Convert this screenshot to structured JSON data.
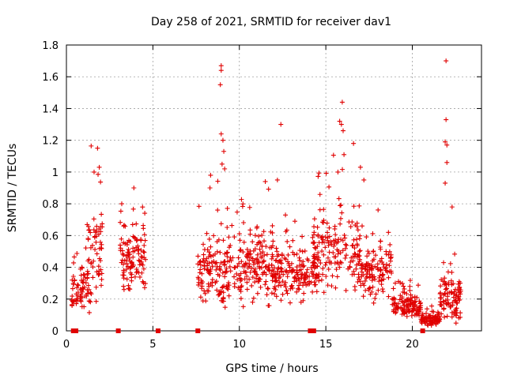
{
  "chart_data": {
    "type": "scatter",
    "title": "Day 258 of 2021, SRMTID for receiver dav1",
    "xlabel": "GPS time / hours",
    "ylabel": "SRMTID / TECUs",
    "xlim": [
      0,
      24
    ],
    "ylim": [
      0,
      1.8
    ],
    "xticks": [
      0,
      5,
      10,
      15,
      20
    ],
    "yticks": [
      0,
      0.2,
      0.4,
      0.6,
      0.8,
      1.0,
      1.2,
      1.4,
      1.6,
      1.8
    ],
    "ytick_labels": [
      "0",
      "0.2",
      "0.4",
      "0.6",
      "0.8",
      "1",
      "1.2",
      "1.4",
      "1.6",
      "1.8"
    ],
    "grid": true,
    "marker": "plus",
    "series_color": "#e00000",
    "clusters": [
      {
        "x0": 0.3,
        "x1": 1.4,
        "base": 0.25,
        "spread": 0.12,
        "n": 70
      },
      {
        "x0": 1.2,
        "x1": 2.1,
        "base": 0.5,
        "spread": 0.25,
        "n": 60
      },
      {
        "x0": 3.1,
        "x1": 4.6,
        "base": 0.45,
        "spread": 0.18,
        "n": 110
      },
      {
        "x0": 7.6,
        "x1": 9.8,
        "base": 0.38,
        "spread": 0.18,
        "n": 150
      },
      {
        "x0": 9.8,
        "x1": 12.0,
        "base": 0.4,
        "spread": 0.2,
        "n": 160
      },
      {
        "x0": 12.0,
        "x1": 14.6,
        "base": 0.36,
        "spread": 0.14,
        "n": 170
      },
      {
        "x0": 14.2,
        "x1": 17.0,
        "base": 0.5,
        "spread": 0.22,
        "n": 170
      },
      {
        "x0": 17.0,
        "x1": 18.8,
        "base": 0.38,
        "spread": 0.16,
        "n": 120
      },
      {
        "x0": 18.8,
        "x1": 20.5,
        "base": 0.15,
        "spread": 0.07,
        "n": 120
      },
      {
        "x0": 20.5,
        "x1": 21.6,
        "base": 0.07,
        "spread": 0.03,
        "n": 90
      },
      {
        "x0": 21.6,
        "x1": 22.8,
        "base": 0.2,
        "spread": 0.12,
        "n": 100
      }
    ],
    "spikes": [
      {
        "x": 1.8,
        "y": 1.15
      },
      {
        "x": 1.9,
        "y": 1.03
      },
      {
        "x": 1.6,
        "y": 1.0
      },
      {
        "x": 3.2,
        "y": 0.8
      },
      {
        "x": 3.9,
        "y": 0.9
      },
      {
        "x": 8.95,
        "y": 1.67
      },
      {
        "x": 8.95,
        "y": 1.64
      },
      {
        "x": 8.9,
        "y": 1.55
      },
      {
        "x": 8.95,
        "y": 1.24
      },
      {
        "x": 9.05,
        "y": 1.2
      },
      {
        "x": 9.1,
        "y": 1.13
      },
      {
        "x": 9.0,
        "y": 1.05
      },
      {
        "x": 9.15,
        "y": 1.02
      },
      {
        "x": 8.3,
        "y": 0.9
      },
      {
        "x": 11.5,
        "y": 0.94
      },
      {
        "x": 12.4,
        "y": 1.3
      },
      {
        "x": 12.2,
        "y": 0.95
      },
      {
        "x": 15.95,
        "y": 1.44
      },
      {
        "x": 15.8,
        "y": 1.32
      },
      {
        "x": 15.9,
        "y": 1.3
      },
      {
        "x": 16.0,
        "y": 1.26
      },
      {
        "x": 16.05,
        "y": 1.11
      },
      {
        "x": 16.6,
        "y": 1.18
      },
      {
        "x": 15.7,
        "y": 1.0
      },
      {
        "x": 17.0,
        "y": 1.03
      },
      {
        "x": 17.2,
        "y": 0.95
      },
      {
        "x": 21.95,
        "y": 1.7
      },
      {
        "x": 21.95,
        "y": 1.33
      },
      {
        "x": 21.9,
        "y": 1.19
      },
      {
        "x": 22.0,
        "y": 1.17
      },
      {
        "x": 22.0,
        "y": 1.06
      },
      {
        "x": 21.9,
        "y": 0.93
      },
      {
        "x": 22.3,
        "y": 0.78
      }
    ],
    "baseline_marks": [
      {
        "x": 0.4,
        "y": 0
      },
      {
        "x": 0.55,
        "y": 0
      },
      {
        "x": 3.0,
        "y": 0
      },
      {
        "x": 5.3,
        "y": 0
      },
      {
        "x": 7.6,
        "y": 0
      },
      {
        "x": 14.1,
        "y": 0
      },
      {
        "x": 14.3,
        "y": 0
      },
      {
        "x": 20.6,
        "y": 0
      }
    ]
  }
}
